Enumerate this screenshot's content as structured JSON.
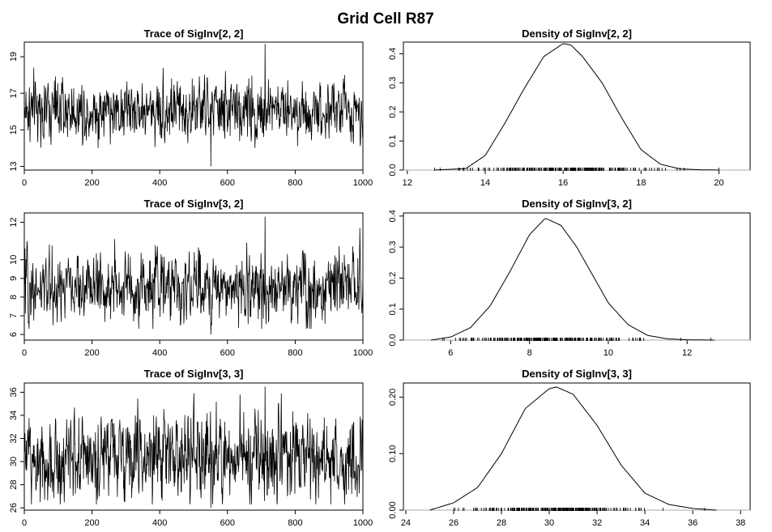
{
  "figure": {
    "title": "Grid Cell R87"
  },
  "chart_data": [
    {
      "type": "line",
      "title": "Trace of SigInv[2, 2]",
      "xlim": [
        0,
        1000
      ],
      "ylim": [
        12.8,
        19.8
      ],
      "x_ticks": [
        0,
        200,
        400,
        600,
        800,
        1000
      ],
      "y_ticks": [
        13,
        15,
        17,
        19
      ],
      "series": [
        {
          "name": "SigInv[2, 2]",
          "n": 1000,
          "mean": 16.1,
          "sd": 0.85,
          "min": 13.0,
          "max": 19.7
        }
      ]
    },
    {
      "type": "area",
      "title": "Density of SigInv[2, 2]",
      "xlim": [
        11.9,
        20.8
      ],
      "ylim": [
        0,
        0.44
      ],
      "x_ticks": [
        12,
        14,
        16,
        18,
        20
      ],
      "y_ticks": [
        0.0,
        0.1,
        0.2,
        0.3,
        0.4
      ],
      "y_tick_labels": [
        "0.0",
        "0.1",
        "0.2",
        "0.3",
        "0.4"
      ],
      "x": [
        12.7,
        13.5,
        14.0,
        14.5,
        15.0,
        15.5,
        16.0,
        16.2,
        16.5,
        17.0,
        17.5,
        18.0,
        18.5,
        19.0,
        19.5,
        20.0
      ],
      "y": [
        0.0,
        0.005,
        0.05,
        0.16,
        0.28,
        0.39,
        0.435,
        0.43,
        0.39,
        0.3,
        0.18,
        0.07,
        0.02,
        0.004,
        0.001,
        0.0
      ],
      "rug_range": [
        12.7,
        20.0
      ]
    },
    {
      "type": "line",
      "title": "Trace of SigInv[3, 2]",
      "xlim": [
        0,
        1000
      ],
      "ylim": [
        5.7,
        12.5
      ],
      "x_ticks": [
        0,
        200,
        400,
        600,
        800,
        1000
      ],
      "y_ticks": [
        6,
        7,
        8,
        9,
        10,
        12
      ],
      "series": [
        {
          "name": "SigInv[3, 2]",
          "n": 1000,
          "mean": 8.5,
          "sd": 0.9,
          "min": 6.0,
          "max": 12.3
        }
      ]
    },
    {
      "type": "area",
      "title": "Density of SigInv[3, 2]",
      "xlim": [
        4.8,
        13.6
      ],
      "ylim": [
        0,
        0.41
      ],
      "x_ticks": [
        6,
        8,
        10,
        12
      ],
      "y_ticks": [
        0.0,
        0.1,
        0.2,
        0.3,
        0.4
      ],
      "y_tick_labels": [
        "0.0",
        "0.1",
        "0.2",
        "0.3",
        "0.4"
      ],
      "x": [
        5.5,
        6.0,
        6.5,
        7.0,
        7.5,
        8.0,
        8.4,
        8.8,
        9.2,
        9.6,
        10.0,
        10.5,
        11.0,
        11.5,
        12.0,
        12.7
      ],
      "y": [
        0.0,
        0.01,
        0.04,
        0.11,
        0.22,
        0.34,
        0.393,
        0.37,
        0.3,
        0.21,
        0.12,
        0.05,
        0.015,
        0.004,
        0.001,
        0.0
      ],
      "rug_range": [
        5.8,
        12.6
      ]
    },
    {
      "type": "line",
      "title": "Trace of SigInv[3, 3]",
      "xlim": [
        0,
        1000
      ],
      "ylim": [
        25.8,
        36.8
      ],
      "x_ticks": [
        0,
        200,
        400,
        600,
        800,
        1000
      ],
      "y_ticks": [
        26,
        28,
        30,
        32,
        34,
        36
      ],
      "series": [
        {
          "name": "SigInv[3, 3]",
          "n": 1000,
          "mean": 30.4,
          "sd": 1.85,
          "min": 26.0,
          "max": 36.5
        }
      ]
    },
    {
      "type": "area",
      "title": "Density of SigInv[3, 3]",
      "xlim": [
        23.9,
        38.4
      ],
      "ylim": [
        0,
        0.225
      ],
      "x_ticks": [
        24,
        26,
        28,
        30,
        32,
        34,
        36,
        38
      ],
      "y_ticks": [
        0.0,
        0.1,
        0.2
      ],
      "y_tick_labels": [
        "0.00",
        "0.10",
        "0.20"
      ],
      "x": [
        25.0,
        26.0,
        27.0,
        28.0,
        29.0,
        30.0,
        30.3,
        31.0,
        32.0,
        33.0,
        34.0,
        35.0,
        36.0,
        37.0
      ],
      "y": [
        0.0,
        0.013,
        0.04,
        0.1,
        0.18,
        0.215,
        0.218,
        0.205,
        0.15,
        0.08,
        0.03,
        0.01,
        0.003,
        0.0
      ],
      "rug_range": [
        26.0,
        36.5
      ]
    }
  ]
}
